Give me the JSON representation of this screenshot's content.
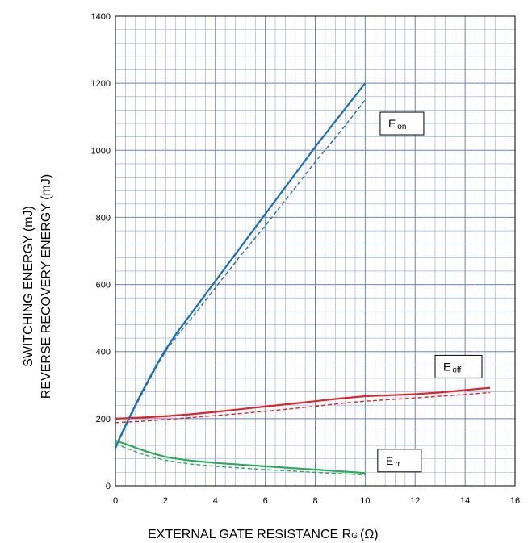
{
  "chart_data": {
    "type": "line",
    "xlabel": "EXTERNAL GATE RESISTANCE R",
    "xlabel_sub": "G",
    "xlabel_unit": "(Ω)",
    "ylabel_line1": "SWITCHING ENERGY (mJ)",
    "ylabel_line2": "REVERSE RECOVERY ENERGY (mJ)",
    "xlim": [
      0,
      16
    ],
    "ylim": [
      0,
      1400
    ],
    "xticks": [
      0,
      2,
      4,
      6,
      8,
      10,
      12,
      14,
      16
    ],
    "yticks": [
      0,
      200,
      400,
      600,
      800,
      1000,
      1200,
      1400
    ],
    "grid": true,
    "colors": {
      "grid_minor": "#8fa6d6",
      "grid_major": "#6a82c0",
      "eon": "#1f6db5",
      "eoff": "#e0242b",
      "err": "#2eaa5a"
    },
    "labels": [
      {
        "id": "eon",
        "main": "E",
        "sub": "on",
        "x": 10.6,
        "y": 1080
      },
      {
        "id": "eoff",
        "main": "E",
        "sub": "off",
        "x": 12.8,
        "y": 355
      },
      {
        "id": "err",
        "main": "E",
        "sub": "rr",
        "x": 10.5,
        "y": 75
      }
    ],
    "series": [
      {
        "id": "eon-solid",
        "style": "solid",
        "color": "eon",
        "x": [
          0,
          0.5,
          1,
          1.5,
          2,
          2.5,
          3,
          4,
          5,
          6,
          7,
          8,
          9,
          10
        ],
        "y": [
          115,
          195,
          270,
          340,
          405,
          460,
          510,
          610,
          710,
          810,
          910,
          1010,
          1105,
          1200
        ]
      },
      {
        "id": "eon-dashed",
        "style": "dashed",
        "color": "eon",
        "x": [
          0,
          0.5,
          1,
          1.5,
          2,
          2.5,
          3,
          4,
          5,
          6,
          7,
          8,
          9,
          10
        ],
        "y": [
          110,
          190,
          265,
          335,
          400,
          450,
          495,
          590,
          685,
          775,
          870,
          965,
          1055,
          1150
        ]
      },
      {
        "id": "eoff-solid",
        "style": "solid",
        "color": "eoff",
        "x": [
          0,
          1,
          2,
          3,
          4,
          5,
          6,
          7,
          8,
          9,
          10,
          11,
          12,
          13,
          14,
          15
        ],
        "y": [
          200,
          203,
          207,
          213,
          220,
          228,
          236,
          244,
          252,
          260,
          267,
          270,
          273,
          278,
          285,
          292
        ]
      },
      {
        "id": "eoff-dashed",
        "style": "dashed",
        "color": "eoff",
        "x": [
          0,
          1,
          2,
          3,
          4,
          5,
          6,
          7,
          8,
          9,
          10,
          11,
          12,
          13,
          14,
          15
        ],
        "y": [
          188,
          192,
          197,
          203,
          209,
          215,
          222,
          229,
          237,
          245,
          252,
          257,
          262,
          267,
          272,
          278
        ]
      },
      {
        "id": "err-solid",
        "style": "solid",
        "color": "err",
        "x": [
          0,
          0.5,
          1,
          1.5,
          2,
          2.5,
          3,
          4,
          5,
          6,
          7,
          8,
          9,
          10
        ],
        "y": [
          135,
          122,
          108,
          96,
          86,
          80,
          75,
          68,
          63,
          58,
          53,
          48,
          43,
          38
        ]
      },
      {
        "id": "err-dashed",
        "style": "dashed",
        "color": "err",
        "x": [
          0,
          0.5,
          1,
          1.5,
          2,
          2.5,
          3,
          4,
          5,
          6,
          7,
          8,
          9,
          10
        ],
        "y": [
          125,
          110,
          96,
          85,
          76,
          70,
          65,
          58,
          53,
          48,
          44,
          40,
          36,
          32
        ]
      }
    ]
  }
}
